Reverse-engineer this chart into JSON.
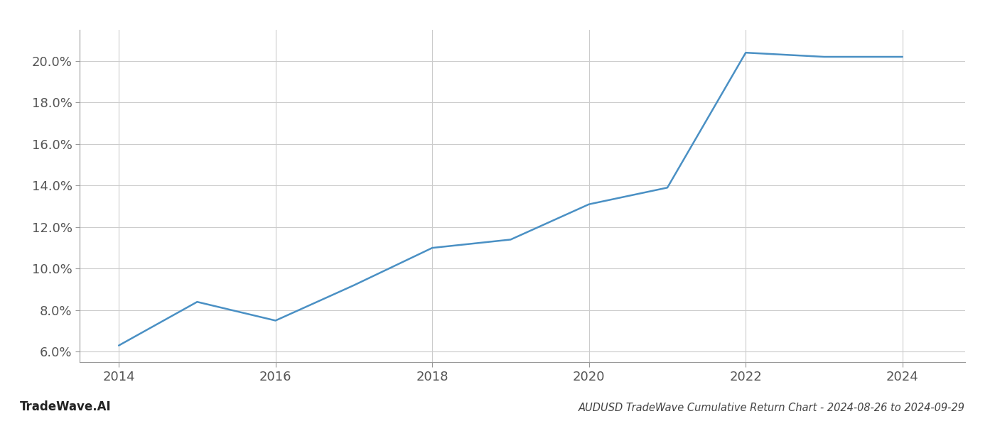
{
  "x_values": [
    2014,
    2015,
    2016,
    2017,
    2018,
    2019,
    2020,
    2021,
    2022,
    2023,
    2024
  ],
  "y_values": [
    6.3,
    8.4,
    7.5,
    9.2,
    11.0,
    11.4,
    13.1,
    13.9,
    20.4,
    20.2,
    20.2
  ],
  "line_color": "#4a90c4",
  "line_width": 1.8,
  "background_color": "#ffffff",
  "grid_color": "#cccccc",
  "title": "AUDUSD TradeWave Cumulative Return Chart - 2024-08-26 to 2024-09-29",
  "bottom_left_label": "TradeWave.AI",
  "xlim": [
    2013.5,
    2024.8
  ],
  "ylim": [
    5.5,
    21.5
  ],
  "ytick_values": [
    6.0,
    8.0,
    10.0,
    12.0,
    14.0,
    16.0,
    18.0,
    20.0
  ],
  "xtick_values": [
    2014,
    2016,
    2018,
    2020,
    2022,
    2024
  ],
  "title_fontsize": 10.5,
  "tick_fontsize": 13,
  "label_fontsize": 12
}
